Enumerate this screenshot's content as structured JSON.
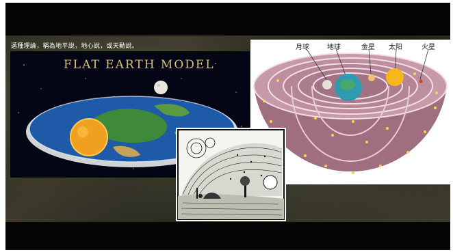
{
  "caption": "邁種理論，稱為地平說，地心說，或天動說。",
  "flat_earth": {
    "title": "FLAT EARTH MODEL"
  },
  "cosmos": {
    "labels": [
      "月球",
      "地球",
      "金星",
      "太阳",
      "火星"
    ]
  },
  "colors": {
    "frame": "#050505",
    "title_gold": "#d9c07a",
    "ocean": "#1f5aa8",
    "sun": "#f0a020",
    "shell": "#b48a9a"
  },
  "icons": [
    "moon-icon",
    "sun-icon",
    "earth-icon"
  ]
}
